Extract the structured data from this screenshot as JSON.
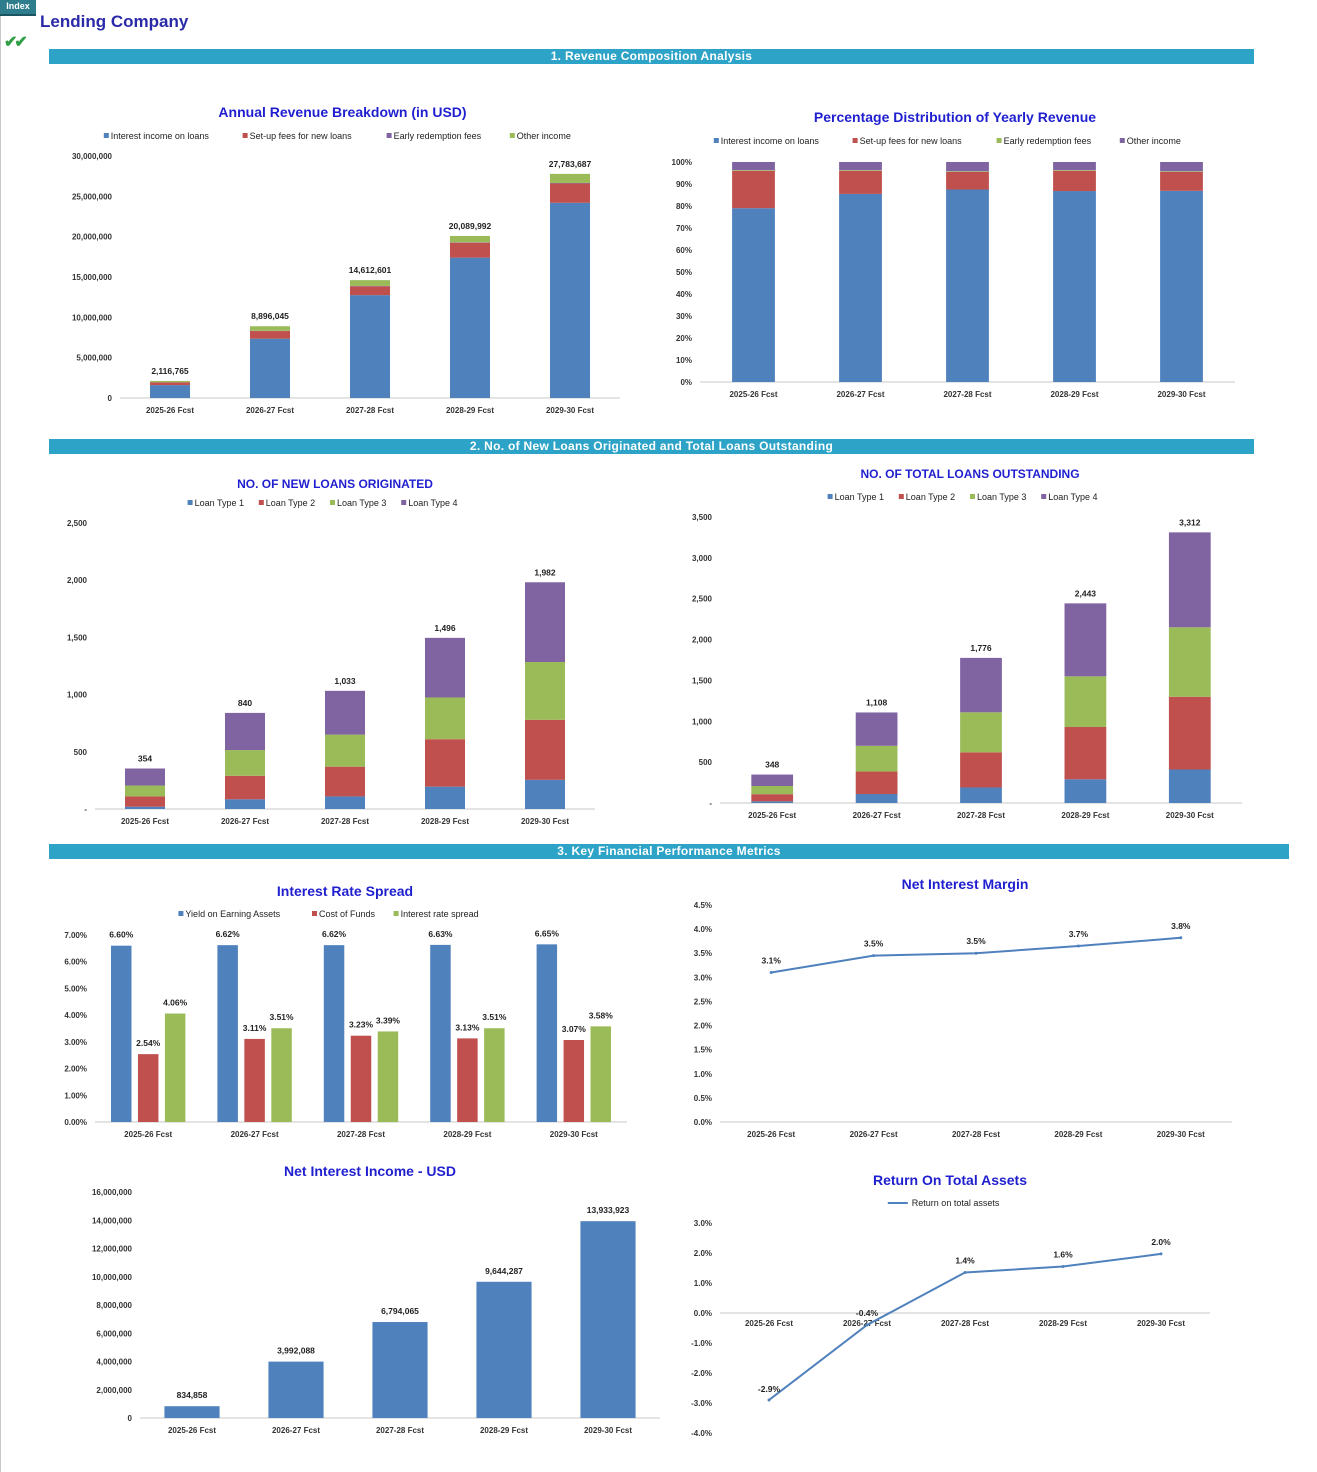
{
  "header": {
    "index_label": "Index",
    "company_title": "Lending Company",
    "check_icon": "double-check-icon"
  },
  "sections": [
    {
      "label": "1. Revenue Composition Analysis"
    },
    {
      "label": "2. No. of New Loans Originated and Total Loans Outstanding"
    },
    {
      "label": "3. Key Financial Performance Metrics"
    }
  ],
  "colors": {
    "blue": "#4f81bd",
    "red": "#c0504d",
    "green": "#9bbb59",
    "purple": "#8064a2",
    "title": "#1f1fd0",
    "section": "#2ea3c8"
  },
  "chart_data": [
    {
      "id": "revenue-breakdown",
      "type": "bar",
      "stacked": true,
      "title": "Annual Revenue Breakdown  (in USD)",
      "categories": [
        "2025-26 Fcst",
        "2026-27 Fcst",
        "2027-28 Fcst",
        "2028-29 Fcst",
        "2029-30 Fcst"
      ],
      "series": [
        {
          "name": "Interest income on loans",
          "color": "#4f81bd",
          "values": [
            1600000,
            7350000,
            12750000,
            17400000,
            24200000
          ]
        },
        {
          "name": "Set-up fees for new loans",
          "color": "#c0504d",
          "values": [
            350000,
            950000,
            1100000,
            1850000,
            2400000
          ]
        },
        {
          "name": "Early redemption fees",
          "color": "#8064a2",
          "values": [
            10000,
            30000,
            40000,
            50000,
            60000
          ]
        },
        {
          "name": "Other income",
          "color": "#9bbb59",
          "values": [
            156765,
            566045,
            722601,
            789992,
            1123687
          ]
        }
      ],
      "totals": [
        "2,116,765",
        "8,896,045",
        "14,612,601",
        "20,089,992",
        "27,783,687"
      ],
      "ylim": [
        0,
        30000000
      ],
      "yticks": [
        "0",
        "5,000,000",
        "10,000,000",
        "15,000,000",
        "20,000,000",
        "25,000,000",
        "30,000,000"
      ],
      "legend": "top"
    },
    {
      "id": "revenue-percentage",
      "type": "bar",
      "stacked": true,
      "title": "Percentage Distribution of Yearly  Revenue",
      "categories": [
        "2025-26 Fcst",
        "2026-27 Fcst",
        "2027-28 Fcst",
        "2028-29 Fcst",
        "2029-30 Fcst"
      ],
      "series": [
        {
          "name": "Interest income on loans",
          "color": "#4f81bd",
          "values": [
            79,
            85.5,
            87.5,
            86.8,
            86.9
          ]
        },
        {
          "name": "Set-up fees for new loans",
          "color": "#c0504d",
          "values": [
            17,
            10.5,
            8,
            9.2,
            8.6
          ]
        },
        {
          "name": "Early redemption fees",
          "color": "#9bbb59",
          "values": [
            0.3,
            0.3,
            0.3,
            0.3,
            0.3
          ]
        },
        {
          "name": "Other income",
          "color": "#8064a2",
          "values": [
            3.7,
            3.7,
            4.2,
            3.7,
            4.2
          ]
        }
      ],
      "ylim": [
        0,
        100
      ],
      "yticks": [
        "0%",
        "10%",
        "20%",
        "30%",
        "40%",
        "50%",
        "60%",
        "70%",
        "80%",
        "90%",
        "100%"
      ],
      "legend": "top"
    },
    {
      "id": "new-loans",
      "type": "bar",
      "stacked": true,
      "title": "NO. OF NEW LOANS ORIGINATED",
      "categories": [
        "2025-26 Fcst",
        "2026-27 Fcst",
        "2027-28 Fcst",
        "2028-29 Fcst",
        "2029-30 Fcst"
      ],
      "series": [
        {
          "name": "Loan Type 1",
          "color": "#4f81bd",
          "values": [
            20,
            85,
            110,
            195,
            255
          ]
        },
        {
          "name": "Loan Type 2",
          "color": "#c0504d",
          "values": [
            90,
            205,
            260,
            415,
            525
          ]
        },
        {
          "name": "Loan Type 3",
          "color": "#9bbb59",
          "values": [
            95,
            225,
            280,
            365,
            505
          ]
        },
        {
          "name": "Loan Type 4",
          "color": "#8064a2",
          "values": [
            149,
            325,
            383,
            521,
            697
          ]
        }
      ],
      "totals": [
        "354",
        "840",
        "1,033",
        "1,496",
        "1,982"
      ],
      "ylim": [
        0,
        2500
      ],
      "yticks": [
        "-",
        "500",
        "1,000",
        "1,500",
        "2,000",
        "2,500"
      ],
      "legend": "top"
    },
    {
      "id": "total-loans",
      "type": "bar",
      "stacked": true,
      "title": "NO. OF TOTAL  LOANS OUTSTANDING",
      "categories": [
        "2025-26 Fcst",
        "2026-27 Fcst",
        "2027-28 Fcst",
        "2028-29 Fcst",
        "2029-30 Fcst"
      ],
      "series": [
        {
          "name": "Loan Type 1",
          "color": "#4f81bd",
          "values": [
            20,
            110,
            190,
            290,
            410
          ]
        },
        {
          "name": "Loan Type 2",
          "color": "#c0504d",
          "values": [
            88,
            275,
            430,
            640,
            890
          ]
        },
        {
          "name": "Loan Type 3",
          "color": "#9bbb59",
          "values": [
            100,
            315,
            490,
            620,
            850
          ]
        },
        {
          "name": "Loan Type 4",
          "color": "#8064a2",
          "values": [
            140,
            408,
            666,
            893,
            1162
          ]
        }
      ],
      "totals": [
        "348",
        "1,108",
        "1,776",
        "2,443",
        "3,312"
      ],
      "ylim": [
        0,
        3500
      ],
      "yticks": [
        "-",
        "500",
        "1,000",
        "1,500",
        "2,000",
        "2,500",
        "3,000",
        "3,500"
      ],
      "legend": "top"
    },
    {
      "id": "interest-rate-spread",
      "type": "bar",
      "stacked": false,
      "title": "Interest Rate Spread",
      "categories": [
        "2025-26 Fcst",
        "2026-27 Fcst",
        "2027-28 Fcst",
        "2028-29 Fcst",
        "2029-30 Fcst"
      ],
      "series": [
        {
          "name": "Yield on Earning Assets",
          "color": "#4f81bd",
          "values": [
            6.6,
            6.62,
            6.62,
            6.63,
            6.65
          ],
          "labels": [
            "6.60%",
            "6.62%",
            "6.62%",
            "6.63%",
            "6.65%"
          ]
        },
        {
          "name": "Cost of Funds",
          "color": "#c0504d",
          "values": [
            2.54,
            3.11,
            3.23,
            3.13,
            3.07
          ],
          "labels": [
            "2.54%",
            "3.11%",
            "3.23%",
            "3.13%",
            "3.07%"
          ]
        },
        {
          "name": "Interest rate spread",
          "color": "#9bbb59",
          "values": [
            4.06,
            3.51,
            3.39,
            3.51,
            3.58
          ],
          "labels": [
            "4.06%",
            "3.51%",
            "3.39%",
            "3.51%",
            "3.58%"
          ]
        }
      ],
      "ylim": [
        0,
        7
      ],
      "yticks": [
        "0.00%",
        "1.00%",
        "2.00%",
        "3.00%",
        "4.00%",
        "5.00%",
        "6.00%",
        "7.00%"
      ],
      "legend": "top"
    },
    {
      "id": "net-interest-margin",
      "type": "line",
      "title": "Net Interest Margin",
      "categories": [
        "2025-26 Fcst",
        "2026-27 Fcst",
        "2027-28 Fcst",
        "2028-29 Fcst",
        "2029-30 Fcst"
      ],
      "series": [
        {
          "color": "#4f81bd",
          "values": [
            3.1,
            3.45,
            3.5,
            3.65,
            3.82
          ],
          "labels": [
            "3.1%",
            "3.5%",
            "3.5%",
            "3.7%",
            "3.8%"
          ]
        }
      ],
      "ylim": [
        0,
        4.5
      ],
      "yticks": [
        "0.0%",
        "0.5%",
        "1.0%",
        "1.5%",
        "2.0%",
        "2.5%",
        "3.0%",
        "3.5%",
        "4.0%",
        "4.5%"
      ],
      "legend": "none"
    },
    {
      "id": "net-interest-income",
      "type": "bar",
      "stacked": false,
      "title": "Net Interest Income - USD",
      "categories": [
        "2025-26 Fcst",
        "2026-27 Fcst",
        "2027-28 Fcst",
        "2028-29 Fcst",
        "2029-30 Fcst"
      ],
      "series": [
        {
          "color": "#4f81bd",
          "values": [
            834858,
            3992088,
            6794065,
            9644287,
            13933923
          ],
          "labels": [
            "834,858",
            "3,992,088",
            "6,794,065",
            "9,644,287",
            "13,933,923"
          ]
        }
      ],
      "ylim": [
        0,
        16000000
      ],
      "yticks": [
        "0",
        "2,000,000",
        "4,000,000",
        "6,000,000",
        "8,000,000",
        "10,000,000",
        "12,000,000",
        "14,000,000",
        "16,000,000"
      ],
      "legend": "none"
    },
    {
      "id": "return-on-assets",
      "type": "line",
      "title": "Return On Total  Assets",
      "categories": [
        "2025-26 Fcst",
        "2026-27 Fcst",
        "2027-28 Fcst",
        "2028-29 Fcst",
        "2029-30 Fcst"
      ],
      "series": [
        {
          "name": "Return on total assets",
          "color": "#4f81bd",
          "values": [
            -2.9,
            -0.4,
            1.35,
            1.55,
            1.97
          ],
          "labels": [
            "-2.9%",
            "-0.4%",
            "1.4%",
            "1.6%",
            "2.0%"
          ]
        }
      ],
      "ylim": [
        -4,
        3
      ],
      "yticks": [
        "-4.0%",
        "-3.0%",
        "-2.0%",
        "-1.0%",
        "0.0%",
        "1.0%",
        "2.0%",
        "3.0%"
      ],
      "legend": "top"
    }
  ]
}
